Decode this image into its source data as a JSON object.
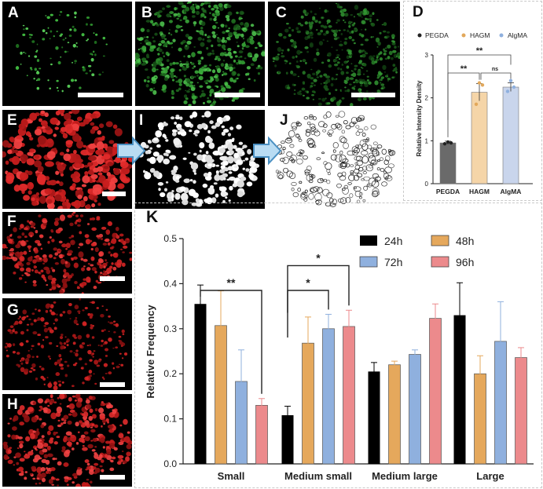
{
  "panels": {
    "A": "A",
    "B": "B",
    "C": "C",
    "D": "D",
    "E": "E",
    "I": "I",
    "J": "J",
    "F": "F",
    "G": "G",
    "H": "H",
    "K": "K"
  },
  "chart_d": {
    "type": "bar",
    "categories": [
      "PEGDA",
      "HAGM",
      "AlgMA"
    ],
    "values": [
      0.95,
      2.13,
      2.25
    ],
    "errors": [
      0.04,
      0.2,
      0.1
    ],
    "points": [
      [
        0.93,
        0.97,
        0.95
      ],
      [
        1.85,
        2.35,
        2.3
      ],
      [
        2.15,
        2.4,
        2.25
      ]
    ],
    "ylabel": "Relative Intensity Density",
    "ylim": [
      0,
      3
    ],
    "yticks": [
      "0",
      "1",
      "2",
      "3"
    ],
    "legend": [
      "PEGDA",
      "HAGM",
      "AlgMA"
    ],
    "colors": [
      "#6a6a6a",
      "#f5d5a8",
      "#c9d5ec"
    ],
    "dot_colors": [
      "#222222",
      "#e2a85b",
      "#8fb0de"
    ],
    "sig": [
      {
        "a": 0,
        "b": 1,
        "label": "**"
      },
      {
        "a": 1,
        "b": 2,
        "label": "ns"
      },
      {
        "a": 0,
        "b": 2,
        "label": "**"
      }
    ]
  },
  "chart_data": {
    "type": "bar",
    "categories": [
      "Small",
      "Medium small",
      "Medium large",
      "Large"
    ],
    "series": [
      {
        "name": "24h",
        "values": [
          0.355,
          0.108,
          0.205,
          0.33
        ],
        "errors": [
          0.042,
          0.02,
          0.02,
          0.072
        ],
        "color": "#000000"
      },
      {
        "name": "48h",
        "values": [
          0.307,
          0.268,
          0.22,
          0.2
        ],
        "errors": [
          0.077,
          0.058,
          0.008,
          0.04
        ],
        "color": "#e5a85c"
      },
      {
        "name": "72h",
        "values": [
          0.183,
          0.3,
          0.243,
          0.272
        ],
        "errors": [
          0.07,
          0.032,
          0.01,
          0.088
        ],
        "color": "#8fb0de"
      },
      {
        "name": "96h",
        "values": [
          0.13,
          0.305,
          0.323,
          0.236
        ],
        "errors": [
          0.015,
          0.036,
          0.032,
          0.022
        ],
        "color": "#ec8a8c"
      }
    ],
    "ylabel": "Relative Frequency",
    "ylim": [
      0,
      0.5
    ],
    "yticks": [
      "0.0",
      "0.1",
      "0.2",
      "0.3",
      "0.4",
      "0.5"
    ],
    "sig": [
      {
        "cat_a": 0,
        "s_a": 0,
        "cat_b": 0,
        "s_b": 3,
        "y": 0.385,
        "label": "**"
      },
      {
        "cat_a": 1,
        "s_a": 0,
        "cat_b": 1,
        "s_b": 2,
        "y": 0.385,
        "label": "*"
      },
      {
        "cat_a": 1,
        "s_a": 0,
        "cat_b": 1,
        "s_b": 3,
        "y": 0.44,
        "label": "*"
      }
    ]
  }
}
